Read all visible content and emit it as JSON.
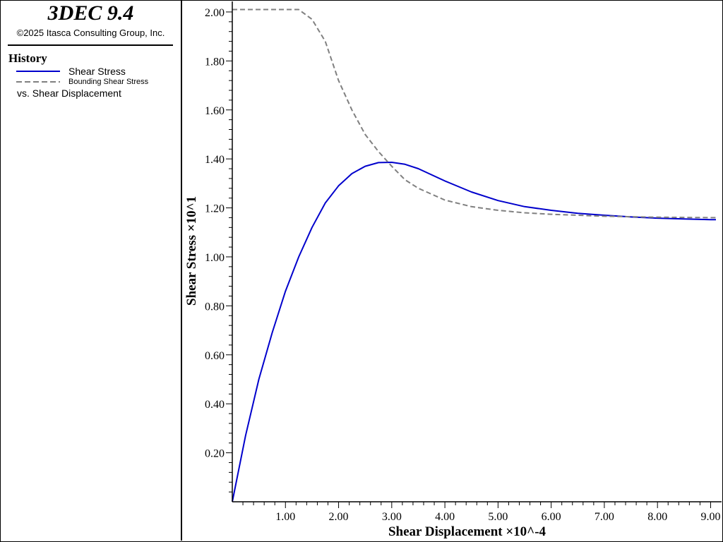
{
  "legend": {
    "app_title": "3DEC 9.4",
    "copyright": "©2025 Itasca Consulting Group, Inc.",
    "history_label": "History",
    "entries": [
      {
        "label": "Shear Stress",
        "style": "solid",
        "color": "#0000cc"
      },
      {
        "label": "Bounding Shear Stress",
        "style": "dashed",
        "color": "#808080"
      }
    ],
    "vs_label": "vs. Shear Displacement"
  },
  "chart_data": {
    "type": "line",
    "xlabel": "Shear Displacement ×10^-4",
    "ylabel": "Shear Stress ×10^1",
    "xlim": [
      0.0,
      9.1
    ],
    "ylim": [
      0.0,
      2.02
    ],
    "xticks": [
      "1.00",
      "2.00",
      "3.00",
      "4.00",
      "5.00",
      "6.00",
      "7.00",
      "8.00",
      "9.00"
    ],
    "yticks": [
      "0.20",
      "0.40",
      "0.60",
      "0.80",
      "1.00",
      "1.20",
      "1.40",
      "1.60",
      "1.80",
      "2.00"
    ],
    "series": [
      {
        "name": "Shear Stress",
        "color": "#0000cc",
        "style": "solid",
        "x": [
          0.0,
          0.25,
          0.5,
          0.75,
          1.0,
          1.25,
          1.5,
          1.75,
          2.0,
          2.25,
          2.5,
          2.75,
          3.0,
          3.25,
          3.5,
          4.0,
          4.5,
          5.0,
          5.5,
          6.0,
          6.5,
          7.0,
          7.5,
          8.0,
          8.5,
          9.0,
          9.1
        ],
        "y": [
          0.0,
          0.27,
          0.5,
          0.69,
          0.86,
          1.0,
          1.12,
          1.22,
          1.29,
          1.34,
          1.37,
          1.385,
          1.386,
          1.378,
          1.36,
          1.31,
          1.265,
          1.23,
          1.205,
          1.19,
          1.178,
          1.17,
          1.163,
          1.158,
          1.155,
          1.152,
          1.152
        ]
      },
      {
        "name": "Bounding Shear Stress",
        "color": "#808080",
        "style": "dashed",
        "x": [
          0.0,
          0.5,
          1.0,
          1.25,
          1.5,
          1.75,
          2.0,
          2.25,
          2.5,
          2.75,
          3.0,
          3.25,
          3.5,
          4.0,
          4.5,
          5.0,
          5.5,
          6.0,
          6.5,
          7.0,
          7.5,
          8.0,
          8.5,
          9.0,
          9.1
        ],
        "y": [
          2.01,
          2.01,
          2.01,
          2.01,
          1.97,
          1.88,
          1.72,
          1.6,
          1.5,
          1.43,
          1.37,
          1.315,
          1.28,
          1.232,
          1.205,
          1.19,
          1.18,
          1.174,
          1.17,
          1.166,
          1.164,
          1.162,
          1.161,
          1.16,
          1.16
        ]
      }
    ]
  }
}
